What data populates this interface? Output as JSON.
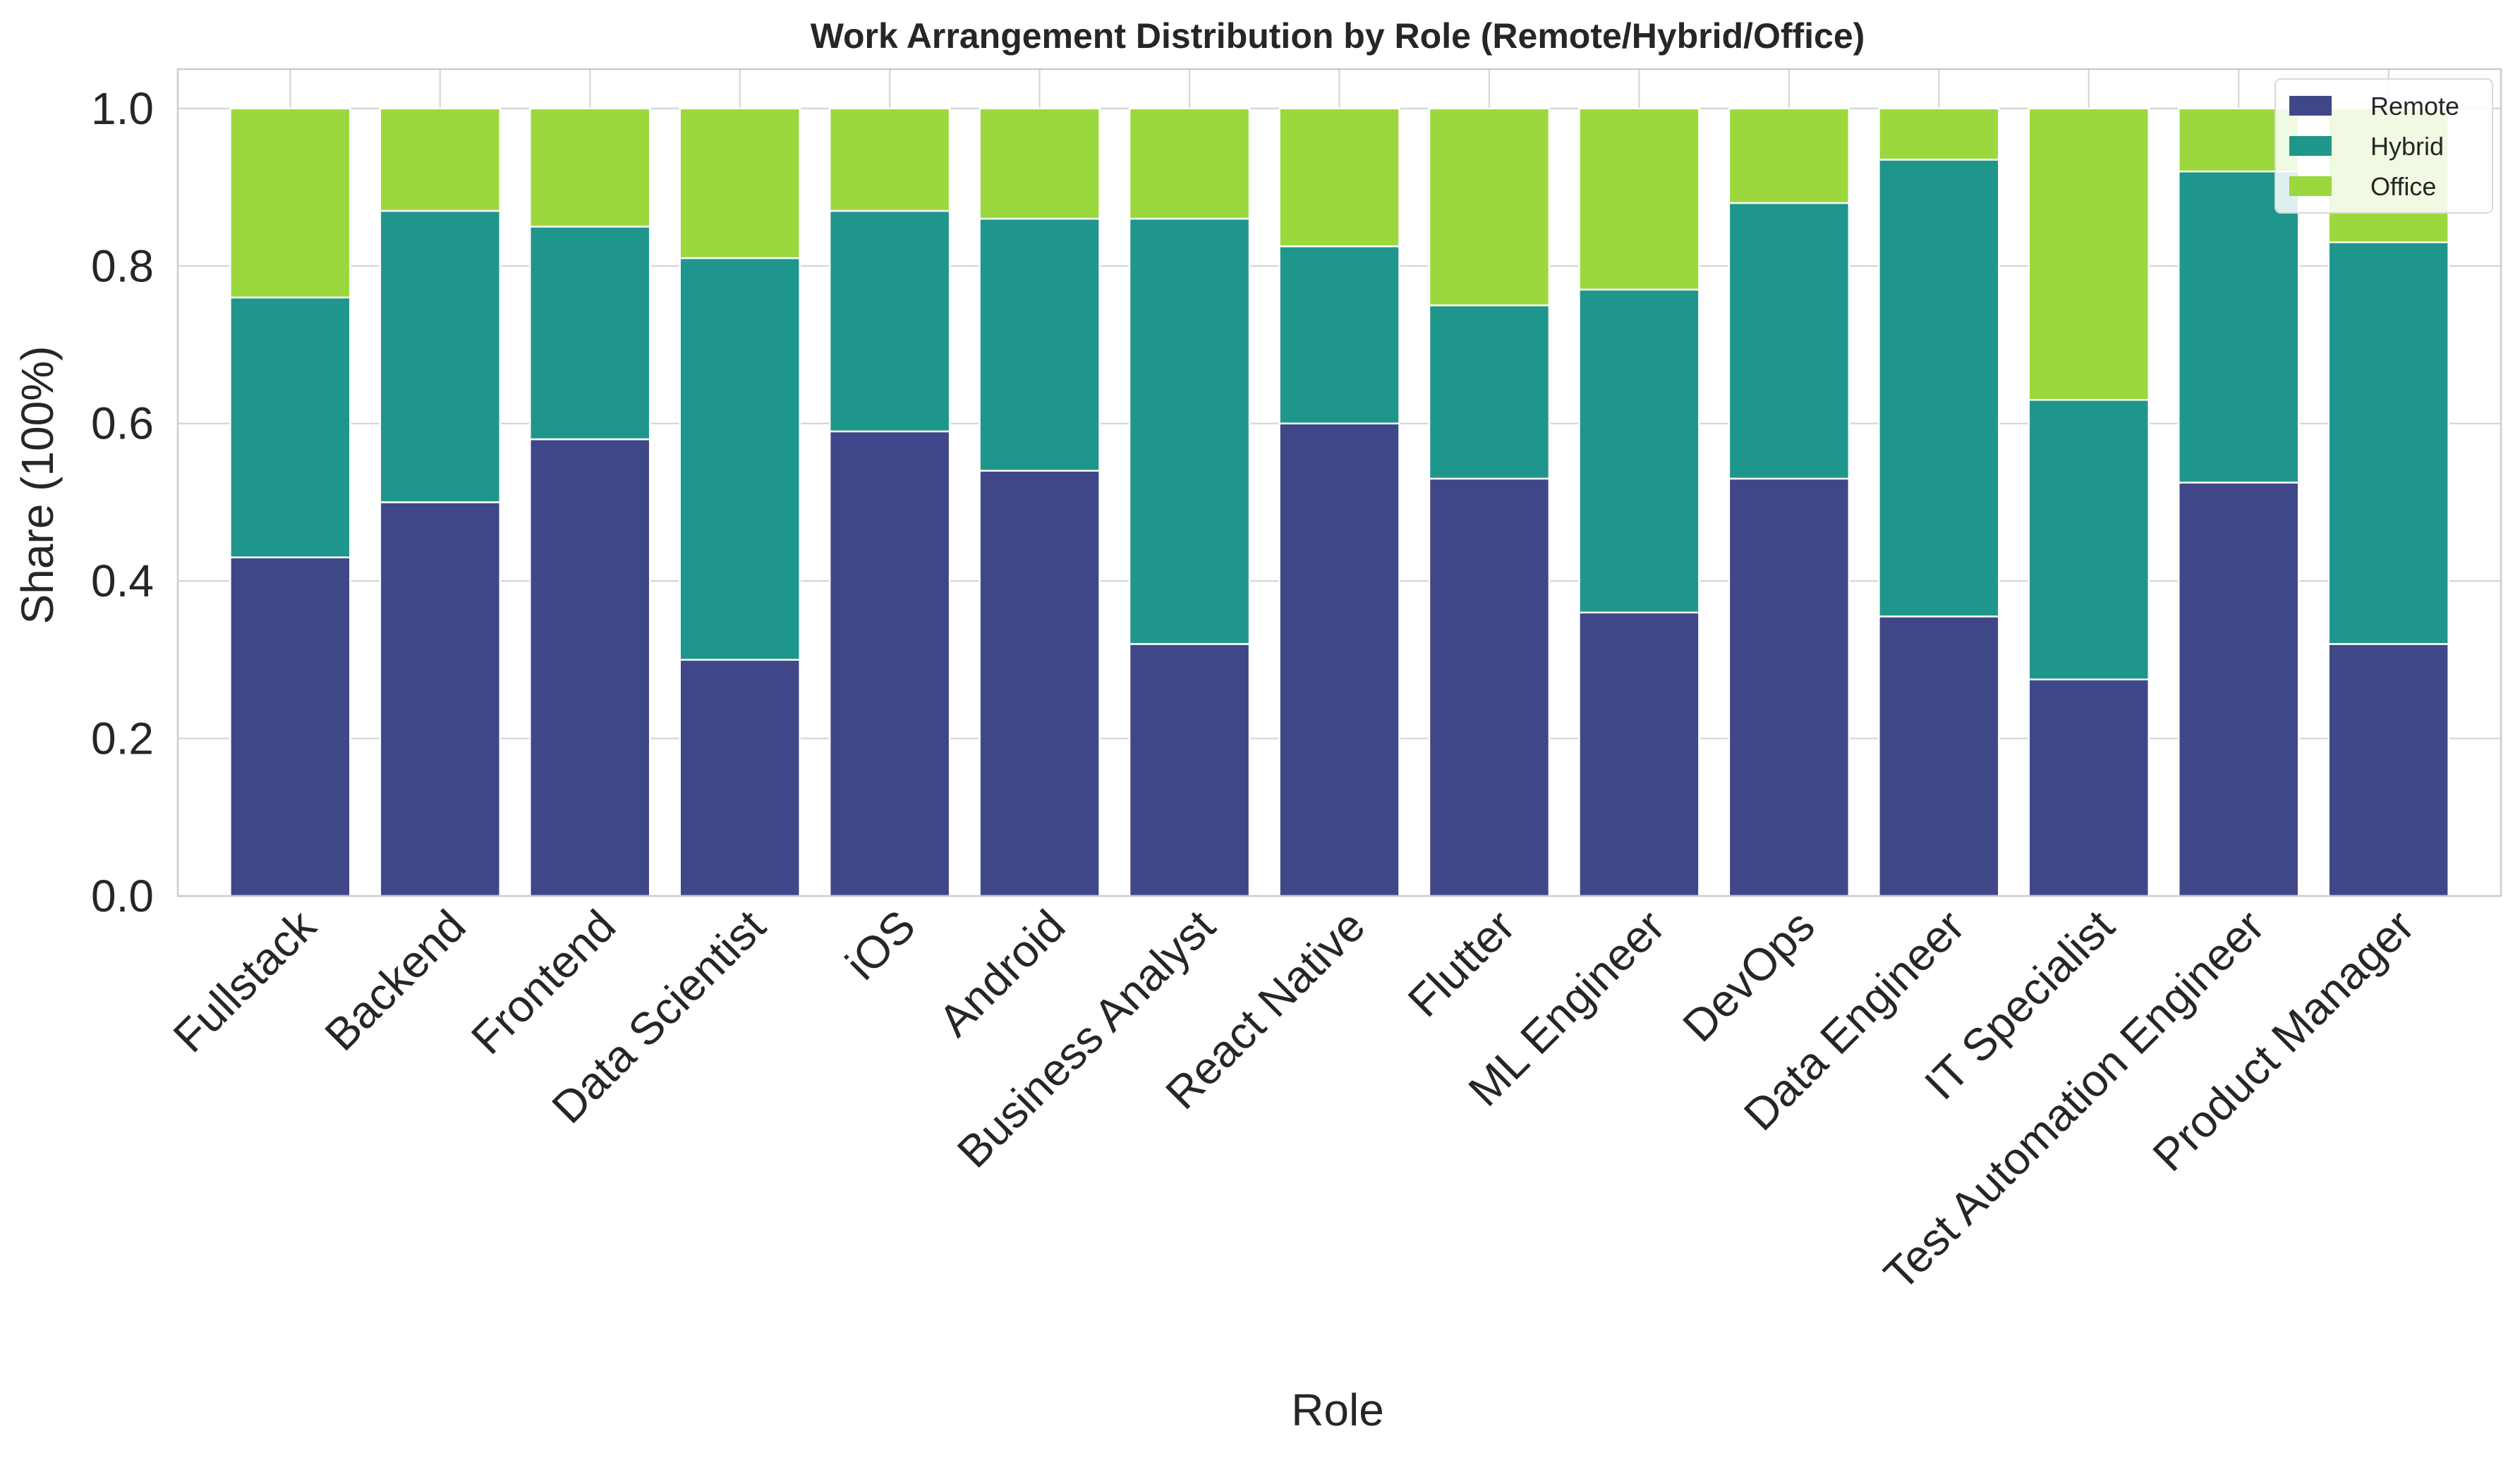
{
  "chart_data": {
    "type": "bar",
    "stacked": true,
    "title": "Work Arrangement Distribution by Role (Remote/Hybrid/Office)",
    "xlabel": "Role",
    "ylabel": "Share (100%)",
    "ylim": [
      0,
      1.05
    ],
    "yticks": [
      "0.0",
      "0.2",
      "0.4",
      "0.6",
      "0.8",
      "1.0"
    ],
    "grid": true,
    "legend_position": "top-right",
    "categories": [
      "Fullstack",
      "Backend",
      "Frontend",
      "Data Scientist",
      "iOS",
      "Android",
      "Business Analyst",
      "React Native",
      "Flutter",
      "ML Engineer",
      "DevOps",
      "Data Engineer",
      "IT Specialist",
      "Test Automation Engineer",
      "Product Manager"
    ],
    "series": [
      {
        "name": "Remote",
        "color": "#404788",
        "values": [
          0.43,
          0.5,
          0.58,
          0.3,
          0.59,
          0.54,
          0.32,
          0.6,
          0.53,
          0.36,
          0.53,
          0.355,
          0.275,
          0.525,
          0.32
        ]
      },
      {
        "name": "Hybrid",
        "color": "#1f968b",
        "values": [
          0.33,
          0.37,
          0.27,
          0.51,
          0.28,
          0.32,
          0.54,
          0.225,
          0.22,
          0.41,
          0.35,
          0.58,
          0.355,
          0.395,
          0.51
        ]
      },
      {
        "name": "Office",
        "color": "#9bd83d",
        "values": [
          0.24,
          0.13,
          0.15,
          0.19,
          0.13,
          0.14,
          0.14,
          0.175,
          0.25,
          0.23,
          0.12,
          0.065,
          0.37,
          0.08,
          0.17
        ]
      }
    ]
  }
}
